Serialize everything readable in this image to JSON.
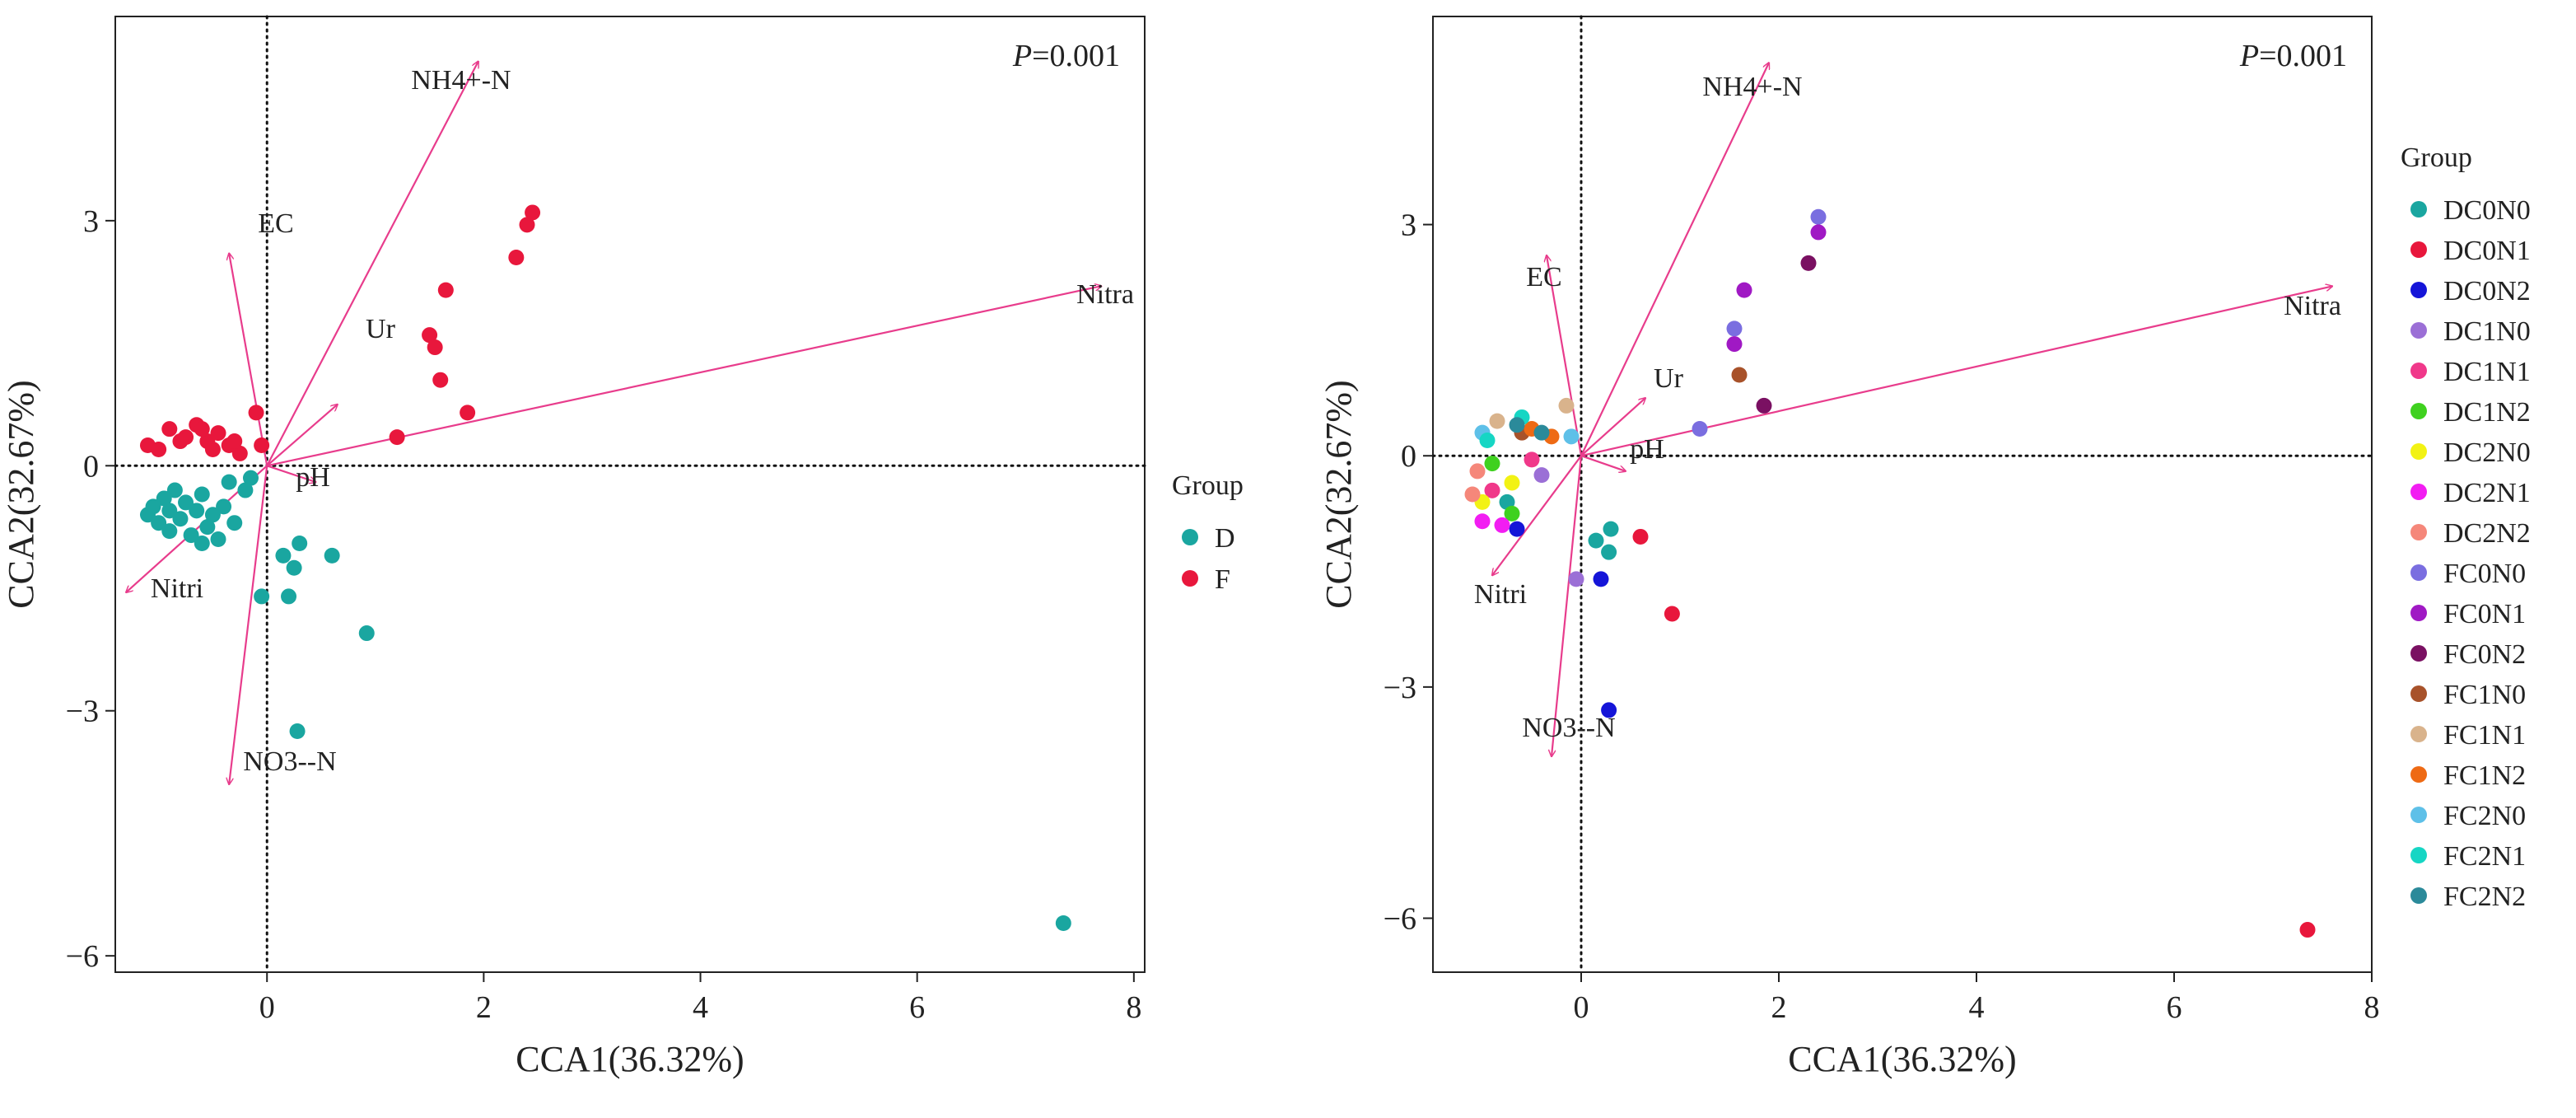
{
  "chart_data": [
    {
      "type": "scatter",
      "title": "",
      "annotation": {
        "italic": "P",
        "rest": "=0.001"
      },
      "xlabel": "CCA1(36.32%)",
      "ylabel": "CCA2(32.67%)",
      "xlim": [
        -1.4,
        8.1
      ],
      "ylim": [
        -6.2,
        5.5
      ],
      "xticks": [
        0,
        2,
        4,
        6,
        8
      ],
      "yticks": [
        3,
        0,
        -3,
        -6
      ],
      "xtick_labels": [
        "0",
        "2",
        "4",
        "6",
        "8"
      ],
      "ytick_labels": [
        "3",
        "0",
        "−3",
        "−6"
      ],
      "reference_lines": {
        "x": 0,
        "y": 0,
        "style": "dotted"
      },
      "legend": {
        "title": "Group",
        "position": "right"
      },
      "vectors": [
        {
          "label": "NH4+-N",
          "x": 1.95,
          "y": 4.95
        },
        {
          "label": "EC",
          "x": -0.35,
          "y": 2.6
        },
        {
          "label": "Nitra",
          "x": 7.7,
          "y": 2.2
        },
        {
          "label": "Ur",
          "x": 0.65,
          "y": 0.75
        },
        {
          "label": "pH",
          "x": 0.45,
          "y": -0.2
        },
        {
          "label": "Nitri",
          "x": -1.3,
          "y": -1.55
        },
        {
          "label": "NO3--N",
          "x": -0.35,
          "y": -3.9
        }
      ],
      "series": [
        {
          "name": "D",
          "color": "#1aa6a0",
          "points": [
            [
              -1.05,
              -0.5
            ],
            [
              -1.0,
              -0.7
            ],
            [
              -0.95,
              -0.4
            ],
            [
              -0.9,
              -0.55
            ],
            [
              -0.85,
              -0.3
            ],
            [
              -0.8,
              -0.65
            ],
            [
              -0.75,
              -0.45
            ],
            [
              -0.7,
              -0.85
            ],
            [
              -0.65,
              -0.55
            ],
            [
              -0.6,
              -0.35
            ],
            [
              -0.55,
              -0.75
            ],
            [
              -0.5,
              -0.6
            ],
            [
              -0.45,
              -0.9
            ],
            [
              -0.4,
              -0.5
            ],
            [
              -0.35,
              -0.2
            ],
            [
              -0.3,
              -0.7
            ],
            [
              -0.9,
              -0.8
            ],
            [
              -1.1,
              -0.6
            ],
            [
              -0.2,
              -0.3
            ],
            [
              -0.6,
              -0.95
            ],
            [
              -0.05,
              -1.6
            ],
            [
              0.15,
              -1.1
            ],
            [
              0.25,
              -1.25
            ],
            [
              0.3,
              -0.95
            ],
            [
              0.2,
              -1.6
            ],
            [
              0.6,
              -1.1
            ],
            [
              0.92,
              -2.05
            ],
            [
              0.28,
              -3.25
            ],
            [
              7.35,
              -5.6
            ],
            [
              -0.15,
              -0.15
            ]
          ]
        },
        {
          "name": "F",
          "color": "#e8173c",
          "points": [
            [
              -1.1,
              0.25
            ],
            [
              -1.0,
              0.2
            ],
            [
              -0.9,
              0.45
            ],
            [
              -0.75,
              0.35
            ],
            [
              -0.65,
              0.5
            ],
            [
              -0.55,
              0.3
            ],
            [
              -0.45,
              0.4
            ],
            [
              -0.35,
              0.25
            ],
            [
              -0.25,
              0.15
            ],
            [
              -0.1,
              0.65
            ],
            [
              -0.05,
              0.25
            ],
            [
              -0.5,
              0.2
            ],
            [
              -0.8,
              0.3
            ],
            [
              1.2,
              0.35
            ],
            [
              1.5,
              1.6
            ],
            [
              1.55,
              1.45
            ],
            [
              1.6,
              1.05
            ],
            [
              1.65,
              2.15
            ],
            [
              1.85,
              0.65
            ],
            [
              2.3,
              2.55
            ],
            [
              2.4,
              2.95
            ],
            [
              2.45,
              3.1
            ],
            [
              -0.3,
              0.3
            ],
            [
              -0.6,
              0.45
            ]
          ]
        }
      ]
    },
    {
      "type": "scatter",
      "title": "",
      "annotation": {
        "italic": "P",
        "rest": "=0.001"
      },
      "xlabel": "CCA1(36.32%)",
      "ylabel": "CCA2(32.67%)",
      "xlim": [
        -1.5,
        8.0
      ],
      "ylim": [
        -6.7,
        5.7
      ],
      "xticks": [
        0,
        2,
        4,
        6,
        8
      ],
      "yticks": [
        3,
        0,
        -3,
        -6
      ],
      "xtick_labels": [
        "0",
        "2",
        "4",
        "6",
        "8"
      ],
      "ytick_labels": [
        "3",
        "0",
        "−3",
        "−6"
      ],
      "reference_lines": {
        "x": 0,
        "y": 0,
        "style": "dotted"
      },
      "legend": {
        "title": "Group",
        "position": "right"
      },
      "vectors": [
        {
          "label": "NH4+-N",
          "x": 1.9,
          "y": 5.1
        },
        {
          "label": "EC",
          "x": -0.35,
          "y": 2.6
        },
        {
          "label": "Nitra",
          "x": 7.6,
          "y": 2.2
        },
        {
          "label": "Ur",
          "x": 0.65,
          "y": 0.75
        },
        {
          "label": "pH",
          "x": 0.45,
          "y": -0.2
        },
        {
          "label": "Nitri",
          "x": -0.9,
          "y": -1.55
        },
        {
          "label": "NO3--N",
          "x": -0.3,
          "y": -3.9
        }
      ],
      "series": [
        {
          "name": "DC0N0",
          "color": "#1aa6a0",
          "points": [
            [
              0.15,
              -1.1
            ],
            [
              0.3,
              -0.95
            ],
            [
              0.28,
              -1.25
            ],
            [
              -0.75,
              -0.6
            ]
          ]
        },
        {
          "name": "DC0N1",
          "color": "#e8173c",
          "points": [
            [
              0.6,
              -1.05
            ],
            [
              0.92,
              -2.05
            ],
            [
              7.35,
              -6.15
            ]
          ]
        },
        {
          "name": "DC0N2",
          "color": "#1515d8",
          "points": [
            [
              0.2,
              -1.6
            ],
            [
              0.28,
              -3.3
            ],
            [
              -0.65,
              -0.95
            ]
          ]
        },
        {
          "name": "DC1N0",
          "color": "#9b6fd6",
          "points": [
            [
              -0.05,
              -1.6
            ],
            [
              -0.4,
              -0.25
            ]
          ]
        },
        {
          "name": "DC1N1",
          "color": "#f0388a",
          "points": [
            [
              -0.9,
              -0.45
            ],
            [
              -0.5,
              -0.05
            ]
          ]
        },
        {
          "name": "DC1N2",
          "color": "#3fd11f",
          "points": [
            [
              -0.9,
              -0.1
            ],
            [
              -0.7,
              -0.75
            ]
          ]
        },
        {
          "name": "DC2N0",
          "color": "#f2f214",
          "points": [
            [
              -0.7,
              -0.35
            ],
            [
              -1.0,
              -0.6
            ]
          ]
        },
        {
          "name": "DC2N1",
          "color": "#f21df2",
          "points": [
            [
              -1.0,
              -0.85
            ],
            [
              -0.8,
              -0.9
            ]
          ]
        },
        {
          "name": "DC2N2",
          "color": "#f5877a",
          "points": [
            [
              -1.1,
              -0.5
            ],
            [
              -1.05,
              -0.2
            ]
          ]
        },
        {
          "name": "FC0N0",
          "color": "#7a6ee0",
          "points": [
            [
              1.55,
              1.65
            ],
            [
              2.4,
              3.1
            ],
            [
              1.2,
              0.35
            ]
          ]
        },
        {
          "name": "FC0N1",
          "color": "#a019c4",
          "points": [
            [
              1.55,
              1.45
            ],
            [
              1.65,
              2.15
            ],
            [
              2.4,
              2.9
            ]
          ]
        },
        {
          "name": "FC0N2",
          "color": "#7a1062",
          "points": [
            [
              1.85,
              0.65
            ],
            [
              2.3,
              2.5
            ]
          ]
        },
        {
          "name": "FC1N0",
          "color": "#a8522a",
          "points": [
            [
              1.6,
              1.05
            ],
            [
              -0.6,
              0.3
            ]
          ]
        },
        {
          "name": "FC1N1",
          "color": "#d9b38c",
          "points": [
            [
              -0.15,
              0.65
            ],
            [
              -0.85,
              0.45
            ]
          ]
        },
        {
          "name": "FC1N2",
          "color": "#ee6a14",
          "points": [
            [
              -0.3,
              0.25
            ],
            [
              -0.5,
              0.35
            ]
          ]
        },
        {
          "name": "FC2N0",
          "color": "#5ec0e8",
          "points": [
            [
              -0.1,
              0.25
            ],
            [
              -1.0,
              0.3
            ]
          ]
        },
        {
          "name": "FC2N1",
          "color": "#16d6c4",
          "points": [
            [
              -0.95,
              0.2
            ],
            [
              -0.6,
              0.5
            ]
          ]
        },
        {
          "name": "FC2N2",
          "color": "#2b8a9a",
          "points": [
            [
              -0.65,
              0.4
            ],
            [
              -0.4,
              0.3
            ]
          ]
        }
      ]
    }
  ]
}
